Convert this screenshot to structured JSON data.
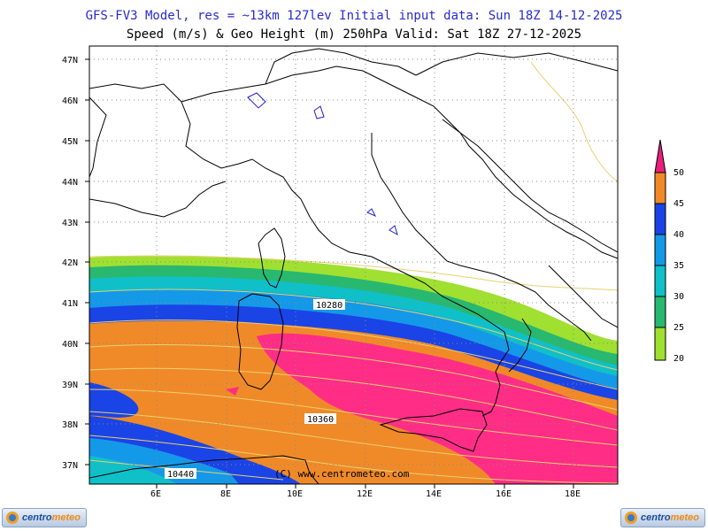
{
  "header": {
    "line1": "GFS-FV3 Model, res = ~13km 127lev   Initial input data: Sun 18Z 14-12-2025",
    "line2": "Speed (m/s) & Geo Height (m) 250hPa  Valid: Sat 18Z 27-12-2025"
  },
  "map": {
    "lat_labels": [
      "47N",
      "46N",
      "45N",
      "44N",
      "43N",
      "42N",
      "41N",
      "40N",
      "39N",
      "38N",
      "37N"
    ],
    "lon_labels": [
      "6E",
      "8E",
      "10E",
      "12E",
      "14E",
      "16E",
      "18E"
    ],
    "contours": [
      "10280",
      "10360",
      "10440"
    ],
    "copyright": "(C) www.centrometeo.com"
  },
  "colorbar": {
    "labels": [
      "50",
      "45",
      "40",
      "35",
      "30",
      "25",
      "20"
    ],
    "colors": [
      "#e8207a",
      "#ff2d86",
      "#f08a28",
      "#1a44e6",
      "#1499e8",
      "#10c0c8",
      "#28b870",
      "#a0e030"
    ]
  },
  "logos": {
    "left": {
      "a": "centro",
      "b": "meteo"
    },
    "right": {
      "a": "centro",
      "b": "meteo"
    }
  }
}
